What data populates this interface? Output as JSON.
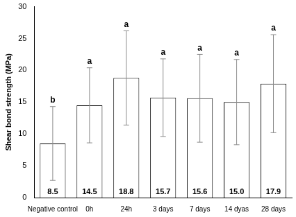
{
  "chart_data": {
    "type": "bar",
    "y_label": "Shear bond strength (MPa)",
    "categories": [
      "Negative control",
      "0h",
      "24h",
      "3 days",
      "7 days",
      "14 dyas",
      "28 days"
    ],
    "values": [
      8.5,
      14.5,
      18.8,
      15.7,
      15.6,
      15.0,
      17.9
    ],
    "value_labels": [
      "8.5",
      "14.5",
      "18.8",
      "15.7",
      "15.6",
      "15.0",
      "17.9"
    ],
    "errors": [
      5.8,
      5.9,
      7.4,
      6.1,
      6.9,
      6.7,
      7.7
    ],
    "letters": [
      "b",
      "a",
      "a",
      "a",
      "a",
      "a",
      "a"
    ],
    "color": "#ffffff",
    "ylim": [
      0,
      30
    ],
    "yticks": [
      0,
      5,
      10,
      15,
      20,
      25,
      30
    ],
    "grid": false,
    "data_labels": true
  }
}
